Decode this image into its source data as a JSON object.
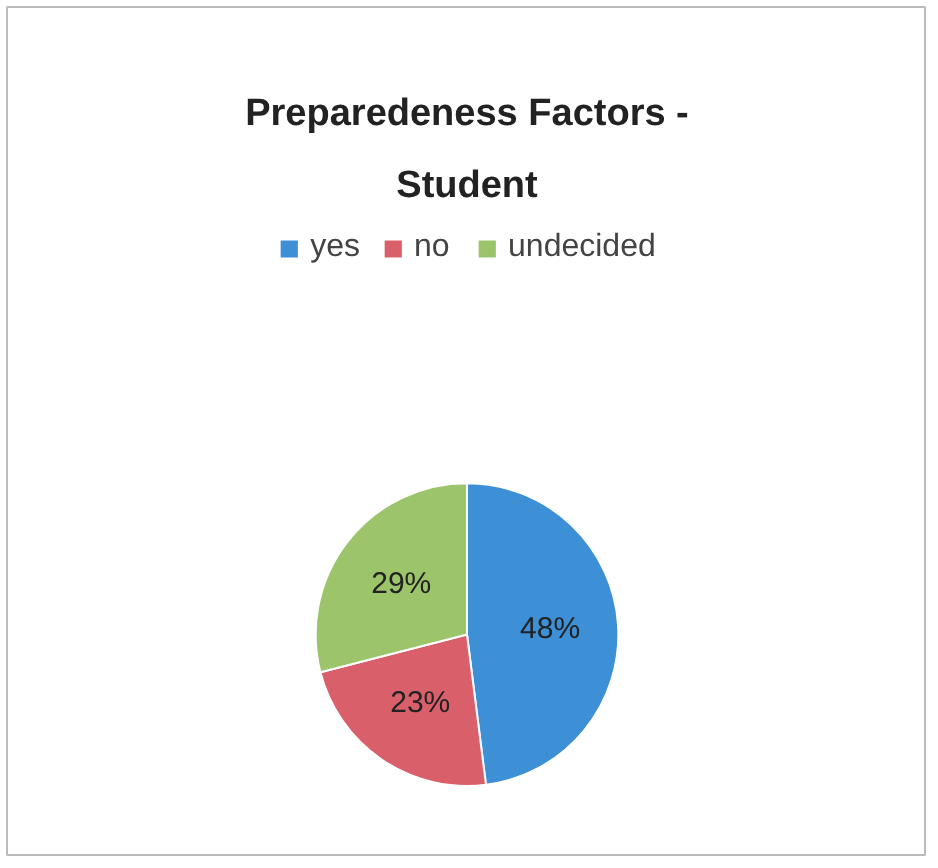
{
  "chart_data": {
    "type": "pie",
    "title": "Preparedeness Factors - Student",
    "categories": [
      "yes",
      "no",
      "undecided"
    ],
    "values": [
      48,
      23,
      29
    ],
    "colors": [
      "#3d8fd6",
      "#d9606b",
      "#9cc46b"
    ],
    "value_labels": [
      "48%",
      "23%",
      "29%"
    ],
    "legend": "top"
  }
}
